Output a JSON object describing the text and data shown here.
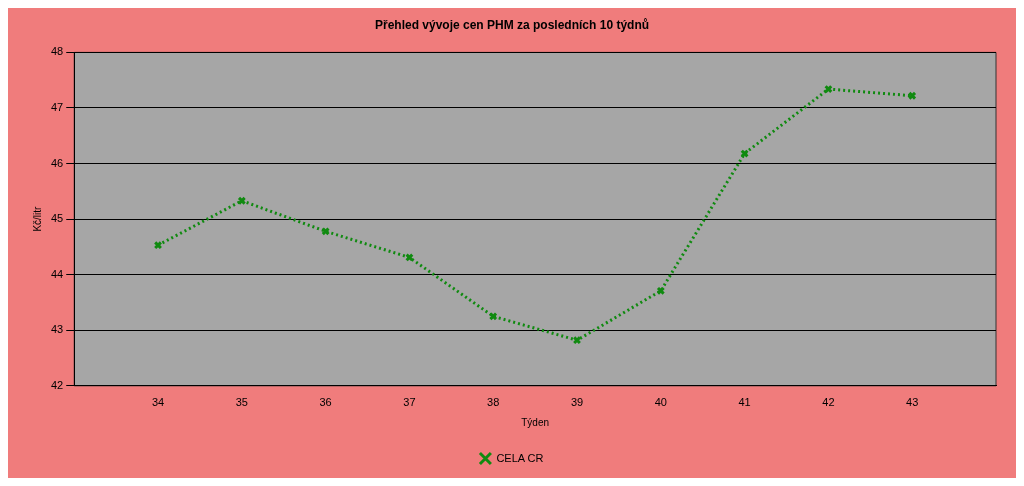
{
  "chart_data": {
    "type": "line",
    "title": "Přehled vývoje cen PHM za posledních 10 týdnů",
    "xlabel": "Týden",
    "ylabel": "Kč/litr",
    "x": [
      34,
      35,
      36,
      37,
      38,
      39,
      40,
      41,
      42,
      43
    ],
    "series": [
      {
        "name": "CELA CR",
        "color": "#108a10",
        "values": [
          44.53,
          45.33,
          44.78,
          44.31,
          43.25,
          42.82,
          43.71,
          46.18,
          47.34,
          47.22
        ]
      }
    ],
    "xlim": [
      33,
      44
    ],
    "xticks": [
      34,
      35,
      36,
      37,
      38,
      39,
      40,
      41,
      42,
      43
    ],
    "ylim": [
      42,
      48
    ],
    "yticks": [
      42,
      43,
      44,
      45,
      46,
      47,
      48
    ],
    "grid": "y",
    "legend": "bottom",
    "marker": "cross",
    "line_style": "dotted"
  }
}
